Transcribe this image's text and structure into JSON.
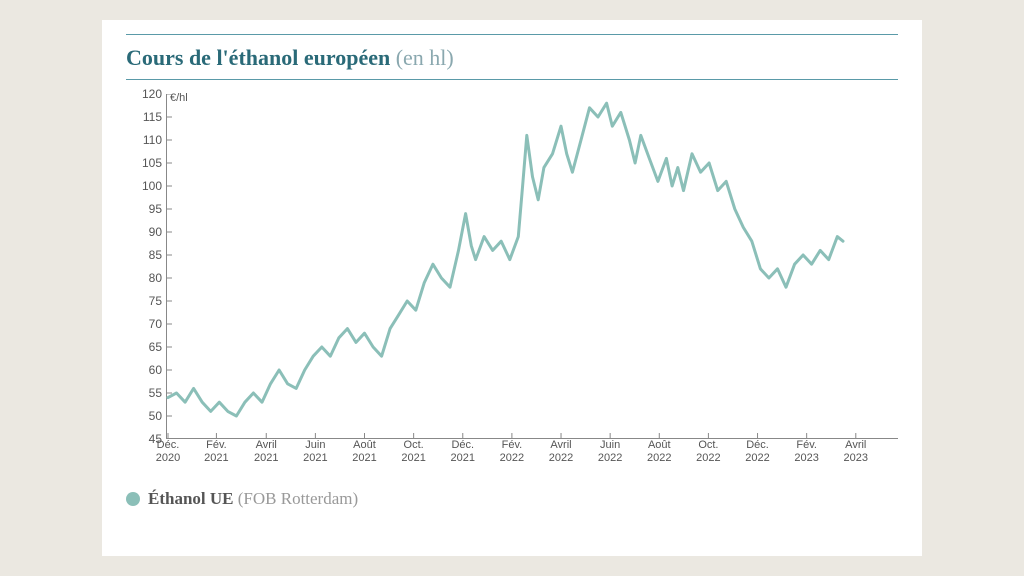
{
  "chart": {
    "type": "line",
    "title_main": "Cours de l'éthanol européen",
    "title_sub": "(en hl)",
    "title_color": "#2a6a78",
    "title_fontsize": 22,
    "unit_label": "€/hl",
    "background_color": "#ffffff",
    "page_background": "#ebe8e1",
    "rule_color": "#5a9aa8",
    "line_color": "#8bbfb8",
    "line_width": 3,
    "grid_color": "#d8d8d8",
    "tick_color": "#888888",
    "text_color": "#555555",
    "ylim": [
      45,
      120
    ],
    "ytick_step": 5,
    "yticks": [
      45,
      50,
      55,
      60,
      65,
      70,
      75,
      80,
      85,
      90,
      95,
      100,
      105,
      110,
      115,
      120
    ],
    "x_labels": [
      {
        "p": 0.0,
        "l1": "Déc.",
        "l2": "2020"
      },
      {
        "p": 0.068,
        "l1": "Fév.",
        "l2": "2021"
      },
      {
        "p": 0.138,
        "l1": "Avril",
        "l2": "2021"
      },
      {
        "p": 0.207,
        "l1": "Juin",
        "l2": "2021"
      },
      {
        "p": 0.276,
        "l1": "Août",
        "l2": "2021"
      },
      {
        "p": 0.345,
        "l1": "Oct.",
        "l2": "2021"
      },
      {
        "p": 0.414,
        "l1": "Déc.",
        "l2": "2021"
      },
      {
        "p": 0.483,
        "l1": "Fév.",
        "l2": "2022"
      },
      {
        "p": 0.552,
        "l1": "Avril",
        "l2": "2022"
      },
      {
        "p": 0.621,
        "l1": "Juin",
        "l2": "2022"
      },
      {
        "p": 0.69,
        "l1": "Août",
        "l2": "2022"
      },
      {
        "p": 0.759,
        "l1": "Oct.",
        "l2": "2022"
      },
      {
        "p": 0.828,
        "l1": "Déc.",
        "l2": "2022"
      },
      {
        "p": 0.897,
        "l1": "Fév.",
        "l2": "2023"
      },
      {
        "p": 0.966,
        "l1": "Avril",
        "l2": "2023"
      }
    ],
    "series": [
      {
        "x": 0.0,
        "y": 54
      },
      {
        "x": 0.012,
        "y": 55
      },
      {
        "x": 0.024,
        "y": 53
      },
      {
        "x": 0.036,
        "y": 56
      },
      {
        "x": 0.048,
        "y": 53
      },
      {
        "x": 0.06,
        "y": 51
      },
      {
        "x": 0.072,
        "y": 53
      },
      {
        "x": 0.084,
        "y": 51
      },
      {
        "x": 0.096,
        "y": 50
      },
      {
        "x": 0.108,
        "y": 53
      },
      {
        "x": 0.12,
        "y": 55
      },
      {
        "x": 0.132,
        "y": 53
      },
      {
        "x": 0.144,
        "y": 57
      },
      {
        "x": 0.156,
        "y": 60
      },
      {
        "x": 0.168,
        "y": 57
      },
      {
        "x": 0.18,
        "y": 56
      },
      {
        "x": 0.192,
        "y": 60
      },
      {
        "x": 0.204,
        "y": 63
      },
      {
        "x": 0.216,
        "y": 65
      },
      {
        "x": 0.228,
        "y": 63
      },
      {
        "x": 0.24,
        "y": 67
      },
      {
        "x": 0.252,
        "y": 69
      },
      {
        "x": 0.264,
        "y": 66
      },
      {
        "x": 0.276,
        "y": 68
      },
      {
        "x": 0.288,
        "y": 65
      },
      {
        "x": 0.3,
        "y": 63
      },
      {
        "x": 0.312,
        "y": 69
      },
      {
        "x": 0.324,
        "y": 72
      },
      {
        "x": 0.336,
        "y": 75
      },
      {
        "x": 0.348,
        "y": 73
      },
      {
        "x": 0.36,
        "y": 79
      },
      {
        "x": 0.372,
        "y": 83
      },
      {
        "x": 0.384,
        "y": 80
      },
      {
        "x": 0.396,
        "y": 78
      },
      {
        "x": 0.408,
        "y": 86
      },
      {
        "x": 0.418,
        "y": 94
      },
      {
        "x": 0.426,
        "y": 87
      },
      {
        "x": 0.432,
        "y": 84
      },
      {
        "x": 0.444,
        "y": 89
      },
      {
        "x": 0.456,
        "y": 86
      },
      {
        "x": 0.468,
        "y": 88
      },
      {
        "x": 0.48,
        "y": 84
      },
      {
        "x": 0.492,
        "y": 89
      },
      {
        "x": 0.498,
        "y": 100
      },
      {
        "x": 0.504,
        "y": 111
      },
      {
        "x": 0.512,
        "y": 102
      },
      {
        "x": 0.52,
        "y": 97
      },
      {
        "x": 0.528,
        "y": 104
      },
      {
        "x": 0.54,
        "y": 107
      },
      {
        "x": 0.552,
        "y": 113
      },
      {
        "x": 0.56,
        "y": 107
      },
      {
        "x": 0.568,
        "y": 103
      },
      {
        "x": 0.58,
        "y": 110
      },
      {
        "x": 0.592,
        "y": 117
      },
      {
        "x": 0.604,
        "y": 115
      },
      {
        "x": 0.616,
        "y": 118
      },
      {
        "x": 0.624,
        "y": 113
      },
      {
        "x": 0.636,
        "y": 116
      },
      {
        "x": 0.648,
        "y": 110
      },
      {
        "x": 0.656,
        "y": 105
      },
      {
        "x": 0.664,
        "y": 111
      },
      {
        "x": 0.676,
        "y": 106
      },
      {
        "x": 0.688,
        "y": 101
      },
      {
        "x": 0.7,
        "y": 106
      },
      {
        "x": 0.708,
        "y": 100
      },
      {
        "x": 0.716,
        "y": 104
      },
      {
        "x": 0.724,
        "y": 99
      },
      {
        "x": 0.736,
        "y": 107
      },
      {
        "x": 0.748,
        "y": 103
      },
      {
        "x": 0.76,
        "y": 105
      },
      {
        "x": 0.772,
        "y": 99
      },
      {
        "x": 0.784,
        "y": 101
      },
      {
        "x": 0.796,
        "y": 95
      },
      {
        "x": 0.808,
        "y": 91
      },
      {
        "x": 0.82,
        "y": 88
      },
      {
        "x": 0.832,
        "y": 82
      },
      {
        "x": 0.844,
        "y": 80
      },
      {
        "x": 0.856,
        "y": 82
      },
      {
        "x": 0.868,
        "y": 78
      },
      {
        "x": 0.88,
        "y": 83
      },
      {
        "x": 0.892,
        "y": 85
      },
      {
        "x": 0.904,
        "y": 83
      },
      {
        "x": 0.916,
        "y": 86
      },
      {
        "x": 0.928,
        "y": 84
      },
      {
        "x": 0.94,
        "y": 89
      },
      {
        "x": 0.948,
        "y": 88
      }
    ],
    "legend": {
      "dot_color": "#8bbfb8",
      "label_main": "Éthanol UE",
      "label_sub": "(FOB Rotterdam)"
    }
  }
}
